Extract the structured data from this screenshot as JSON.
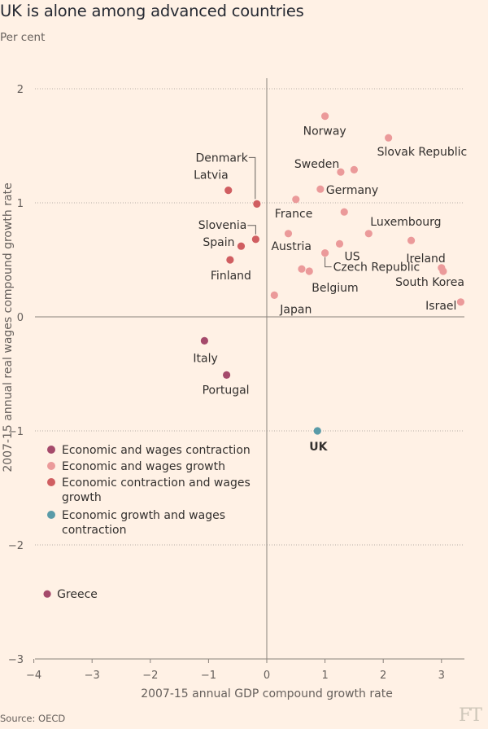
{
  "header": {
    "title": "UK is alone among advanced countries",
    "subtitle": "Per cent"
  },
  "footer": {
    "source": "Source: OECD",
    "logo": "FT"
  },
  "chart_data": {
    "type": "scatter",
    "xlabel": "2007-15 annual GDP compound growth rate",
    "ylabel": "2007-15 annual real wages compound growth rate",
    "xlim": [
      -4,
      3.35
    ],
    "ylim": [
      -3,
      2.1
    ],
    "xticks": [
      -4,
      -3,
      -2,
      -1,
      0,
      1,
      2,
      3
    ],
    "yticks": [
      -3,
      -2,
      -1,
      0,
      1,
      2
    ],
    "grid": "horizontal dotted",
    "legend_position": "lower-left",
    "categories": {
      "contraction": {
        "label": "Economic and wages contraction",
        "color": "#a54a6b"
      },
      "growth": {
        "label": "Economic and wages growth",
        "color": "#eb9a9a"
      },
      "econ_contraction_wage_growth": {
        "label": "Economic contraction and wages growth",
        "color": "#d05e61"
      },
      "econ_growth_wage_contraction": {
        "label": "Economic growth and wages contraction",
        "color": "#5a9ba8"
      }
    },
    "points": [
      {
        "name": "Norway",
        "x": 1.0,
        "y": 1.76,
        "cat": "growth"
      },
      {
        "name": "Slovak Republic",
        "x": 2.09,
        "y": 1.57,
        "cat": "growth"
      },
      {
        "name": "Sweden",
        "x": 1.27,
        "y": 1.27,
        "cat": "growth"
      },
      {
        "name": "",
        "x": 1.5,
        "y": 1.29,
        "cat": "growth"
      },
      {
        "name": "Germany",
        "x": 0.92,
        "y": 1.12,
        "cat": "growth"
      },
      {
        "name": "France",
        "x": 0.5,
        "y": 1.03,
        "cat": "growth"
      },
      {
        "name": "",
        "x": 1.33,
        "y": 0.92,
        "cat": "growth"
      },
      {
        "name": "Luxembourg",
        "x": 1.75,
        "y": 0.73,
        "cat": "growth"
      },
      {
        "name": "",
        "x": 2.48,
        "y": 0.67,
        "cat": "growth"
      },
      {
        "name": "Austria",
        "x": 0.37,
        "y": 0.73,
        "cat": "growth"
      },
      {
        "name": "US",
        "x": 1.25,
        "y": 0.64,
        "cat": "growth"
      },
      {
        "name": "Czech Republic",
        "x": 1.0,
        "y": 0.56,
        "cat": "growth"
      },
      {
        "name": "Ireland",
        "x": 3.0,
        "y": 0.43,
        "cat": "growth"
      },
      {
        "name": "South Korea",
        "x": 3.03,
        "y": 0.4,
        "cat": "growth"
      },
      {
        "name": "",
        "x": 0.6,
        "y": 0.42,
        "cat": "growth"
      },
      {
        "name": "Belgium",
        "x": 0.73,
        "y": 0.4,
        "cat": "growth"
      },
      {
        "name": "Japan",
        "x": 0.13,
        "y": 0.19,
        "cat": "growth"
      },
      {
        "name": "Israel",
        "x": 3.33,
        "y": 0.13,
        "cat": "growth"
      },
      {
        "name": "Denmark",
        "x": -0.17,
        "y": 0.99,
        "cat": "econ_contraction_wage_growth"
      },
      {
        "name": "Latvia",
        "x": -0.66,
        "y": 1.11,
        "cat": "econ_contraction_wage_growth"
      },
      {
        "name": "Slovenia",
        "x": -0.19,
        "y": 0.68,
        "cat": "econ_contraction_wage_growth"
      },
      {
        "name": "Spain",
        "x": -0.44,
        "y": 0.62,
        "cat": "econ_contraction_wage_growth"
      },
      {
        "name": "Finland",
        "x": -0.63,
        "y": 0.5,
        "cat": "econ_contraction_wage_growth"
      },
      {
        "name": "Italy",
        "x": -1.07,
        "y": -0.21,
        "cat": "contraction"
      },
      {
        "name": "Portugal",
        "x": -0.69,
        "y": -0.51,
        "cat": "contraction"
      },
      {
        "name": "Greece",
        "x": -3.77,
        "y": -2.43,
        "cat": "contraction"
      },
      {
        "name": "UK",
        "x": 0.87,
        "y": -1.0,
        "cat": "econ_growth_wage_contraction",
        "bold": true
      }
    ]
  }
}
